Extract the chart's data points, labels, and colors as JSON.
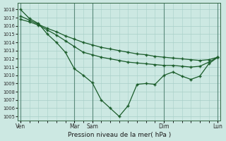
{
  "bg_color": "#cce8e2",
  "grid_color": "#a8cfc8",
  "line_color": "#1a5c2a",
  "xlabel": "Pression niveau de la mer( hPa )",
  "ylim": [
    1004.5,
    1018.8
  ],
  "yticks": [
    1005,
    1006,
    1007,
    1008,
    1009,
    1010,
    1011,
    1012,
    1013,
    1014,
    1015,
    1016,
    1017,
    1018
  ],
  "xtick_positions": [
    0,
    3,
    4,
    8,
    11
  ],
  "xtick_labels": [
    "Ven",
    "Mar",
    "Sam",
    "Dim",
    "Lun"
  ],
  "line1_x": [
    0,
    0.5,
    1.0,
    1.5,
    2.0,
    2.5,
    3.0,
    3.5,
    4.0,
    4.5,
    5.0,
    5.5,
    6.0,
    6.5,
    7.0,
    7.5,
    8.0,
    8.5,
    9.0,
    9.5,
    10.0,
    10.5,
    11.0
  ],
  "line1_y": [
    1018.0,
    1016.9,
    1016.3,
    1015.0,
    1014.0,
    1012.8,
    1010.8,
    1010.0,
    1009.1,
    1007.0,
    1006.0,
    1005.0,
    1006.3,
    1008.9,
    1009.0,
    1008.9,
    1010.0,
    1010.4,
    1009.9,
    1009.5,
    1009.9,
    1011.4,
    1012.2
  ],
  "line2_x": [
    0,
    0.5,
    1.0,
    1.5,
    2.0,
    2.5,
    3.0,
    3.5,
    4.0,
    4.5,
    5.0,
    5.5,
    6.0,
    6.5,
    7.0,
    7.5,
    8.0,
    8.5,
    9.0,
    9.5,
    10.0,
    10.5,
    11.0
  ],
  "line2_y": [
    1017.2,
    1016.7,
    1016.2,
    1015.7,
    1015.3,
    1014.8,
    1014.4,
    1014.0,
    1013.7,
    1013.4,
    1013.2,
    1013.0,
    1012.8,
    1012.6,
    1012.5,
    1012.3,
    1012.2,
    1012.1,
    1012.0,
    1011.9,
    1011.8,
    1011.9,
    1012.2
  ],
  "line3_x": [
    0,
    0.5,
    1.0,
    1.5,
    2.0,
    2.5,
    3.0,
    3.5,
    4.0,
    4.5,
    5.0,
    5.5,
    6.0,
    6.5,
    7.0,
    7.5,
    8.0,
    8.5,
    9.0,
    9.5,
    10.0,
    10.5,
    11.0
  ],
  "line3_y": [
    1016.8,
    1016.5,
    1016.1,
    1015.5,
    1014.9,
    1014.2,
    1013.5,
    1012.8,
    1012.5,
    1012.2,
    1012.0,
    1011.8,
    1011.6,
    1011.5,
    1011.4,
    1011.3,
    1011.2,
    1011.2,
    1011.1,
    1011.0,
    1011.1,
    1011.6,
    1012.2
  ]
}
